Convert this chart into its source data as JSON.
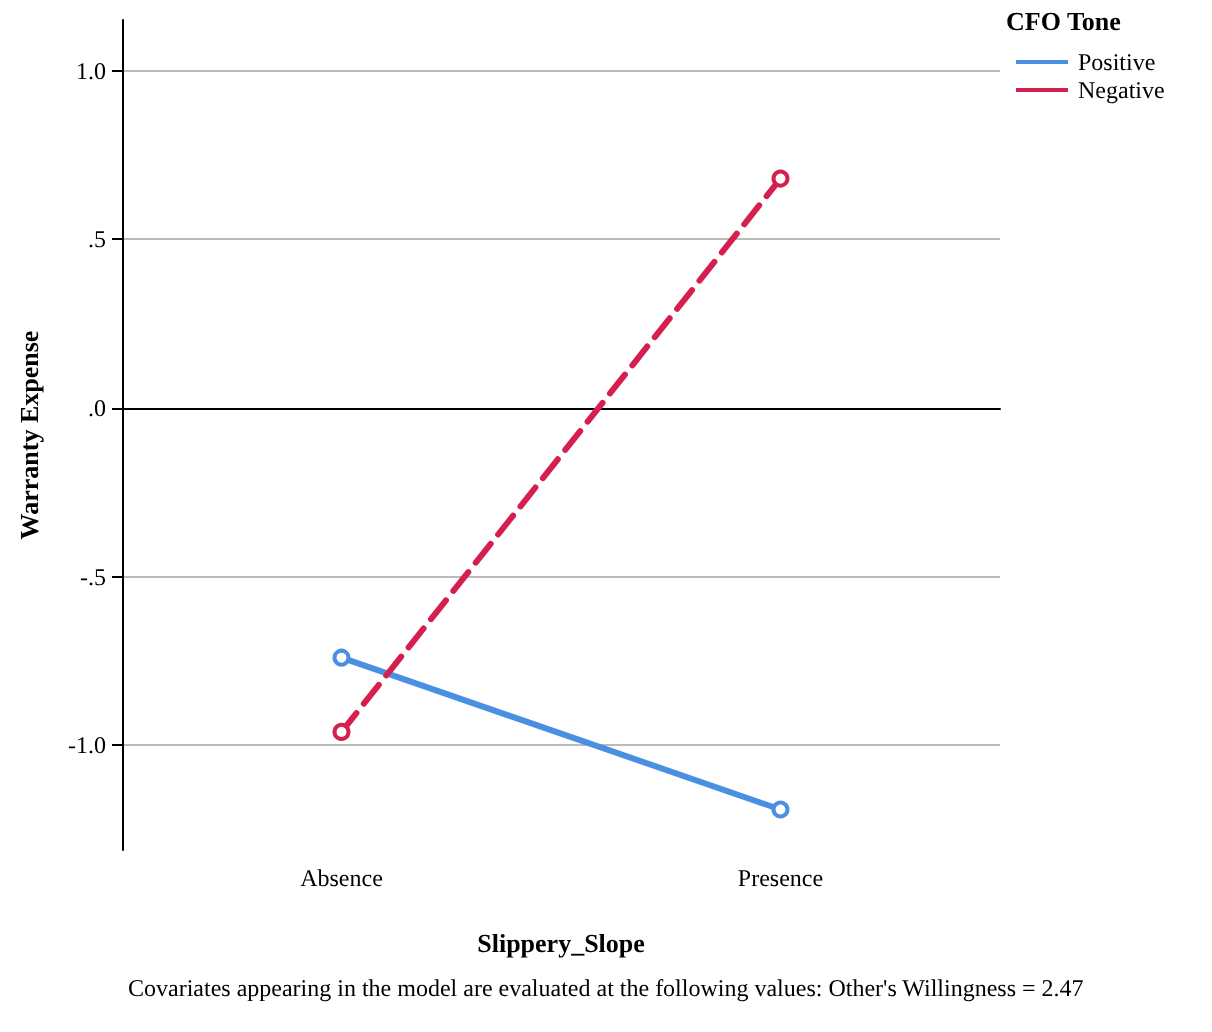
{
  "chart_data": {
    "type": "line",
    "xlabel": "Slippery_Slope",
    "ylabel": "Warranty Expense",
    "legend_title": "CFO Tone",
    "categories": [
      "Absence",
      "Presence"
    ],
    "series": [
      {
        "name": "Positive",
        "color": "#4a90e2",
        "values": [
          -0.74,
          -1.19
        ],
        "line_style": "solid"
      },
      {
        "name": "Negative",
        "color": "#d41f4f",
        "values": [
          -0.96,
          0.68
        ],
        "line_style": "dashed"
      }
    ],
    "ylim": [
      -1.31,
      1.15
    ],
    "yticks": [
      {
        "value": -1.0,
        "label": "-1.0"
      },
      {
        "value": -0.5,
        "label": "-.5"
      },
      {
        "value": 0,
        "label": ".0"
      },
      {
        "value": 0.5,
        "label": ".5"
      },
      {
        "value": 1.0,
        "label": "1.0"
      }
    ],
    "grid": "y",
    "legend": "top right",
    "marker": "circle",
    "annotations": [
      "Covariates appearing in the model are evaluated at the following values: Other's Willingness = 2.47"
    ]
  }
}
